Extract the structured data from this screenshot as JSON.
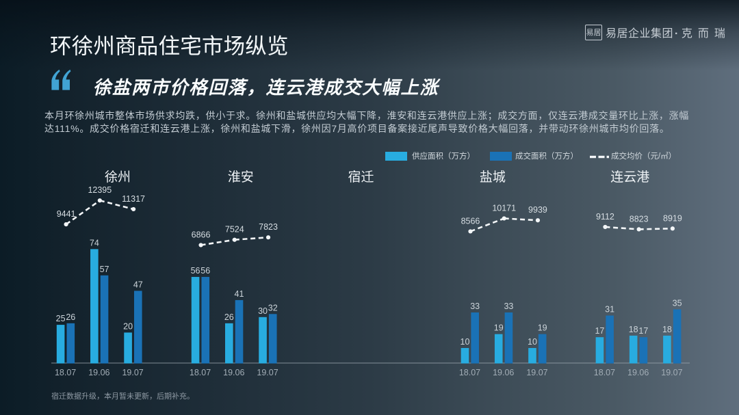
{
  "header": {
    "title": "环徐州商品住宅市场纵览",
    "logo": {
      "seal_text": "易居",
      "group_name": "易居企业集团",
      "separator": "·",
      "brand_name": "克而瑞"
    }
  },
  "quote": {
    "headline": "徐盐两市价格回落，连云港成交大幅上涨"
  },
  "summary": {
    "lines": [
      "本月环徐州城市整体市场供求均跌，供小于求。徐州和盐城供应均大幅下降，淮安和连云港供应上涨；成交方面，仅连云港成交量环比上涨，涨幅",
      "达111%。成交价格宿迁和连云港上涨，徐州和盐城下滑，徐州因7月高价项目备案接近尾声导致价格大幅回落，并带动环徐州城市均价回落。"
    ]
  },
  "legend": {
    "items": [
      {
        "label": "供应面积（万方）",
        "type": "swatch",
        "color": "#28ace0"
      },
      {
        "label": "成交面积（万方）",
        "type": "swatch",
        "color": "#1a72b6"
      },
      {
        "label": "成交均价（元/㎡）",
        "type": "dashed-line",
        "color": "#f3f6f8"
      }
    ]
  },
  "footnote": "宿迁数据升级，本月暂未更新，后期补充。",
  "chart_data": {
    "type": "bar",
    "periods": [
      "18.07",
      "19.06",
      "19.07"
    ],
    "series_legend": [
      "供应面积（万方）",
      "成交面积（万方）",
      "成交均价（元/㎡）"
    ],
    "colors": {
      "supply": "#28ace0",
      "deal": "#1a72b6",
      "price_line": "#f3f6f8"
    },
    "cities": [
      {
        "name": "徐州",
        "supply": [
          25,
          74,
          20
        ],
        "deal": [
          26,
          57,
          47
        ],
        "price": [
          9441,
          12395,
          11317
        ]
      },
      {
        "name": "淮安",
        "supply": [
          56,
          26,
          30
        ],
        "deal": [
          56,
          41,
          32
        ],
        "price": [
          6866,
          7524,
          7823
        ]
      },
      {
        "name": "宿迁",
        "supply": [],
        "deal": [],
        "price": []
      },
      {
        "name": "盐城",
        "supply": [
          10,
          19,
          10
        ],
        "deal": [
          33,
          33,
          19
        ],
        "price": [
          8566,
          10171,
          9939
        ]
      },
      {
        "name": "连云港",
        "supply": [
          17,
          18,
          18
        ],
        "deal": [
          31,
          17,
          35
        ],
        "price": [
          9112,
          8823,
          8919
        ]
      }
    ]
  }
}
